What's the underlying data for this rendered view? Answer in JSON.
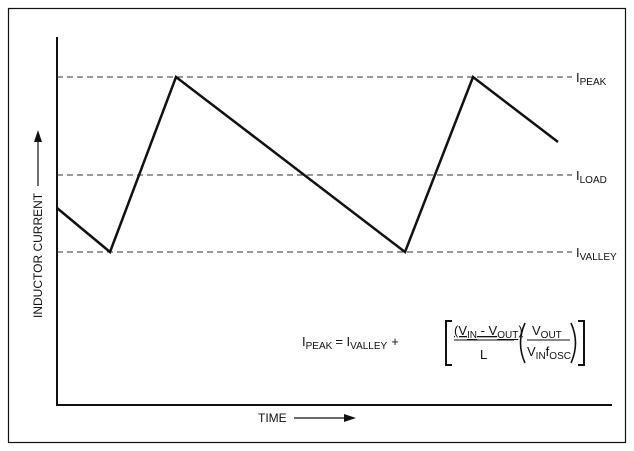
{
  "axes": {
    "y_label": "INDUCTOR CURRENT",
    "x_label": "TIME"
  },
  "levels": [
    {
      "main": "I",
      "sub": "PEAK"
    },
    {
      "main": "I",
      "sub": "LOAD"
    },
    {
      "main": "I",
      "sub": "VALLEY"
    }
  ],
  "formula": {
    "lhs_main": "I",
    "lhs_sub": "PEAK",
    "eq_main": "= I",
    "eq_sub": "VALLEY",
    "plus": "+",
    "num1": [
      "(V",
      "IN",
      " - V",
      "OUT",
      ")"
    ],
    "den1": "L",
    "num2": [
      "V",
      "OUT"
    ],
    "den2": [
      "V",
      "IN",
      "f",
      "OSC"
    ]
  }
}
